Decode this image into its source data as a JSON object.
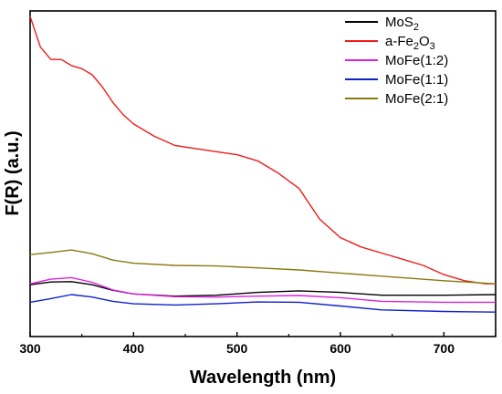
{
  "chart_data": {
    "type": "line",
    "title": "",
    "xlabel": "Wavelength (nm)",
    "ylabel": "F(R) (a.u.)",
    "xlim": [
      300,
      750
    ],
    "ylim": [
      0,
      1
    ],
    "x_ticks": [
      "300",
      "400",
      "500",
      "600",
      "700"
    ],
    "y_ticks_shown": false,
    "grid": false,
    "legend_position": "top-right",
    "series": [
      {
        "name": "MoS2",
        "legend_main": "MoS",
        "legend_sub": "2",
        "legend_tail": "",
        "color": "#000000",
        "x": [
          300,
          320,
          340,
          360,
          380,
          400,
          440,
          480,
          520,
          560,
          600,
          640,
          700,
          750
        ],
        "y": [
          0.127,
          0.136,
          0.137,
          0.127,
          0.109,
          0.097,
          0.09,
          0.093,
          0.102,
          0.107,
          0.102,
          0.093,
          0.093,
          0.095
        ]
      },
      {
        "name": "a-Fe2O3",
        "legend_main": "a-Fe",
        "legend_sub": "2",
        "legend_tail": "O",
        "legend_sub2": "3",
        "color": "#ee1c1c",
        "x": [
          300,
          310,
          320,
          330,
          340,
          350,
          360,
          370,
          380,
          390,
          400,
          420,
          440,
          460,
          480,
          500,
          520,
          540,
          560,
          580,
          600,
          620,
          640,
          660,
          680,
          700,
          720,
          740,
          750
        ],
        "y": [
          1.0,
          0.9,
          0.86,
          0.86,
          0.84,
          0.83,
          0.81,
          0.77,
          0.72,
          0.68,
          0.65,
          0.61,
          0.58,
          0.57,
          0.56,
          0.55,
          0.53,
          0.49,
          0.44,
          0.34,
          0.28,
          0.25,
          0.23,
          0.21,
          0.19,
          0.16,
          0.14,
          0.13,
          0.13
        ]
      },
      {
        "name": "MoFe(1:2)",
        "legend_main": "MoFe(1:2)",
        "legend_sub": "",
        "legend_tail": "",
        "color": "#e020e0",
        "x": [
          300,
          320,
          340,
          360,
          380,
          400,
          440,
          480,
          520,
          560,
          600,
          640,
          700,
          750
        ],
        "y": [
          0.13,
          0.145,
          0.15,
          0.135,
          0.11,
          0.097,
          0.088,
          0.087,
          0.09,
          0.092,
          0.085,
          0.073,
          0.07,
          0.07
        ]
      },
      {
        "name": "MoFe(1:1)",
        "legend_main": "MoFe(1:1)",
        "legend_sub": "",
        "legend_tail": "",
        "color": "#1020cc",
        "x": [
          300,
          320,
          340,
          360,
          380,
          400,
          440,
          480,
          520,
          560,
          600,
          640,
          700,
          750
        ],
        "y": [
          0.07,
          0.082,
          0.095,
          0.087,
          0.073,
          0.065,
          0.061,
          0.065,
          0.071,
          0.07,
          0.058,
          0.045,
          0.04,
          0.038
        ]
      },
      {
        "name": "MoFe(2:1)",
        "legend_main": "MoFe(2:1)",
        "legend_sub": "",
        "legend_tail": "",
        "color": "#8a7a10",
        "x": [
          300,
          320,
          340,
          360,
          380,
          400,
          440,
          480,
          520,
          560,
          600,
          640,
          700,
          750
        ],
        "y": [
          0.225,
          0.232,
          0.24,
          0.228,
          0.207,
          0.197,
          0.19,
          0.188,
          0.182,
          0.175,
          0.165,
          0.155,
          0.14,
          0.13
        ]
      }
    ]
  }
}
